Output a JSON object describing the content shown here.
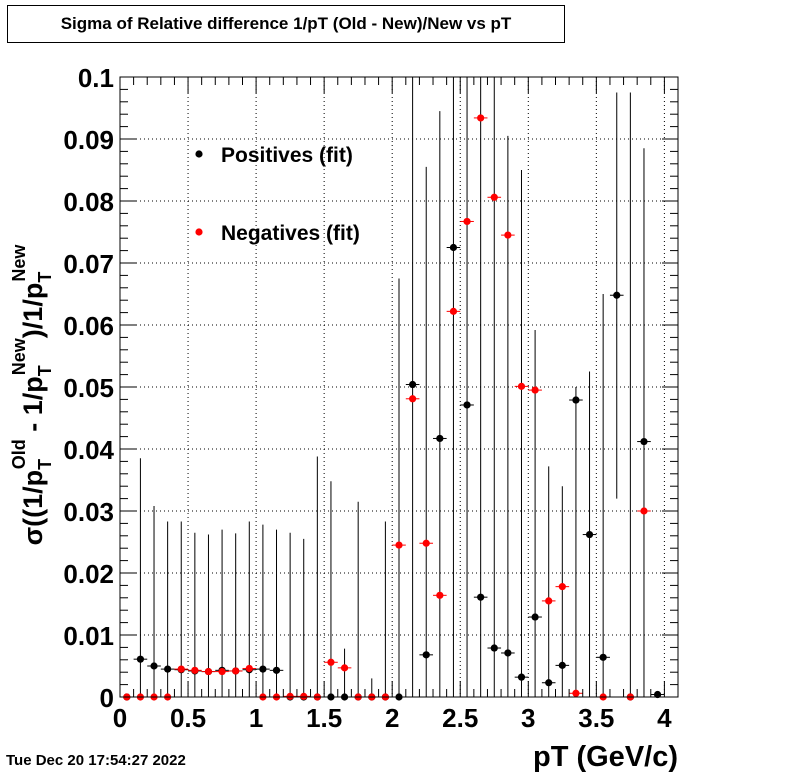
{
  "title": "Sigma of Relative difference 1/pT (Old - New)/New vs pT",
  "timestamp": "Tue Dec 20 17:54:27 2022",
  "colors": {
    "positives": "#000000",
    "negatives": "#ff0000"
  },
  "chart_data": {
    "type": "scatter",
    "title": "Sigma of Relative difference 1/pT (Old - New)/New vs pT",
    "xlabel": "pT (GeV/c)",
    "ylabel": "σ((1/pT^Old - 1/pT^New)/1/pT^New)",
    "ylabel_parts": {
      "sigma": "σ((1/p",
      "sub_t": "T",
      "sup_old": "Old",
      "mid": " - 1/p",
      "sup_new": "New",
      "end": ")/1/p"
    },
    "xlim": [
      0,
      4.1
    ],
    "ylim": [
      0,
      0.1
    ],
    "x_ticks": [
      {
        "value": 0,
        "label": "0"
      },
      {
        "value": 0.5,
        "label": "0.5"
      },
      {
        "value": 1,
        "label": "1"
      },
      {
        "value": 1.5,
        "label": "1.5"
      },
      {
        "value": 2,
        "label": "2"
      },
      {
        "value": 2.5,
        "label": "2.5"
      },
      {
        "value": 3,
        "label": "3"
      },
      {
        "value": 3.5,
        "label": "3.5"
      },
      {
        "value": 4,
        "label": "4"
      }
    ],
    "y_ticks": [
      {
        "value": 0,
        "label": "0"
      },
      {
        "value": 0.01,
        "label": "0.01"
      },
      {
        "value": 0.02,
        "label": "0.02"
      },
      {
        "value": 0.03,
        "label": "0.03"
      },
      {
        "value": 0.04,
        "label": "0.04"
      },
      {
        "value": 0.05,
        "label": "0.05"
      },
      {
        "value": 0.06,
        "label": "0.06"
      },
      {
        "value": 0.07,
        "label": "0.07"
      },
      {
        "value": 0.08,
        "label": "0.08"
      },
      {
        "value": 0.09,
        "label": "0.09"
      },
      {
        "value": 0.1,
        "label": "0.1"
      }
    ],
    "grid": true,
    "legend": "top-left",
    "x_error": 0.05,
    "series": [
      {
        "name": "Positives (fit)",
        "color": "#000000",
        "points": [
          {
            "x": 0.05,
            "y": 0.0,
            "lo": 0.0,
            "hi": 0.0
          },
          {
            "x": 0.15,
            "y": 0.0061,
            "lo": 0.0,
            "hi": 0.0385
          },
          {
            "x": 0.25,
            "y": 0.005,
            "lo": 0.0,
            "hi": 0.0308
          },
          {
            "x": 0.35,
            "y": 0.0045,
            "lo": 0.0,
            "hi": 0.0283
          },
          {
            "x": 0.45,
            "y": 0.0044,
            "lo": 0.0,
            "hi": 0.0283
          },
          {
            "x": 0.55,
            "y": 0.0042,
            "lo": 0.0,
            "hi": 0.0265
          },
          {
            "x": 0.65,
            "y": 0.0041,
            "lo": 0.0,
            "hi": 0.0262
          },
          {
            "x": 0.75,
            "y": 0.0043,
            "lo": 0.0,
            "hi": 0.027
          },
          {
            "x": 0.85,
            "y": 0.0042,
            "lo": 0.0,
            "hi": 0.0264
          },
          {
            "x": 0.95,
            "y": 0.0044,
            "lo": 0.0,
            "hi": 0.0283
          },
          {
            "x": 1.05,
            "y": 0.0045,
            "lo": 0.0,
            "hi": 0.0278
          },
          {
            "x": 1.15,
            "y": 0.0043,
            "lo": 0.0,
            "hi": 0.027
          },
          {
            "x": 1.25,
            "y": 0.0,
            "lo": 0.0,
            "hi": 0.0265
          },
          {
            "x": 1.35,
            "y": 0.0,
            "lo": 0.0,
            "hi": 0.0255
          },
          {
            "x": 1.45,
            "y": 0.0,
            "lo": 0.0,
            "hi": 0.0388
          },
          {
            "x": 1.55,
            "y": 0.0,
            "lo": 0.0,
            "hi": 0.0348
          },
          {
            "x": 1.65,
            "y": 0.0,
            "lo": 0.0,
            "hi": 0.0078
          },
          {
            "x": 1.75,
            "y": 0.0,
            "lo": 0.0,
            "hi": 0.0315
          },
          {
            "x": 1.85,
            "y": 0.0,
            "lo": 0.0,
            "hi": 0.003
          },
          {
            "x": 1.95,
            "y": 0.0,
            "lo": 0.0,
            "hi": 0.0283
          },
          {
            "x": 2.05,
            "y": 0.0,
            "lo": 0.0,
            "hi": 0.0675
          },
          {
            "x": 2.15,
            "y": 0.0504,
            "lo": 0.0,
            "hi": 0.1
          },
          {
            "x": 2.25,
            "y": 0.0068,
            "lo": 0.0,
            "hi": 0.0855
          },
          {
            "x": 2.35,
            "y": 0.0417,
            "lo": 0.0,
            "hi": 0.0945
          },
          {
            "x": 2.45,
            "y": 0.0725,
            "lo": 0.0,
            "hi": 0.1
          },
          {
            "x": 2.55,
            "y": 0.0471,
            "lo": 0.0,
            "hi": 0.1
          },
          {
            "x": 2.65,
            "y": 0.0161,
            "lo": 0.0,
            "hi": 0.1
          },
          {
            "x": 2.75,
            "y": 0.0079,
            "lo": 0.0,
            "hi": 0.1
          },
          {
            "x": 2.85,
            "y": 0.0071,
            "lo": 0.0,
            "hi": 0.0905
          },
          {
            "x": 2.95,
            "y": 0.0032,
            "lo": 0.0,
            "hi": 0.085
          },
          {
            "x": 3.05,
            "y": 0.0129,
            "lo": 0.0,
            "hi": 0.0592
          },
          {
            "x": 3.15,
            "y": 0.0023,
            "lo": 0.0,
            "hi": 0.0372
          },
          {
            "x": 3.25,
            "y": 0.0051,
            "lo": 0.0,
            "hi": 0.034
          },
          {
            "x": 3.35,
            "y": 0.0479,
            "lo": 0.0,
            "hi": 0.05
          },
          {
            "x": 3.45,
            "y": 0.0262,
            "lo": 0.0,
            "hi": 0.0525
          },
          {
            "x": 3.55,
            "y": 0.0064,
            "lo": 0.0,
            "hi": 0.065
          },
          {
            "x": 3.65,
            "y": 0.0648,
            "lo": 0.032,
            "hi": 0.0975
          },
          {
            "x": 3.75,
            "y": 0.0,
            "lo": 0.0,
            "hi": 0.0975
          },
          {
            "x": 3.85,
            "y": 0.0412,
            "lo": 0.0,
            "hi": 0.0885
          },
          {
            "x": 3.95,
            "y": 0.0004,
            "lo": 0.0,
            "hi": 0.0
          }
        ]
      },
      {
        "name": "Negatives (fit)",
        "color": "#ff0000",
        "points": [
          {
            "x": 0.05,
            "y": 0.0
          },
          {
            "x": 0.15,
            "y": 0.0
          },
          {
            "x": 0.25,
            "y": 0.0
          },
          {
            "x": 0.35,
            "y": 0.0
          },
          {
            "x": 0.45,
            "y": 0.0045
          },
          {
            "x": 0.55,
            "y": 0.0043
          },
          {
            "x": 0.65,
            "y": 0.0041
          },
          {
            "x": 0.75,
            "y": 0.0041
          },
          {
            "x": 0.85,
            "y": 0.0042
          },
          {
            "x": 0.95,
            "y": 0.0046
          },
          {
            "x": 1.05,
            "y": 0.0
          },
          {
            "x": 1.15,
            "y": 0.0
          },
          {
            "x": 1.25,
            "y": 0.0001
          },
          {
            "x": 1.35,
            "y": 0.0001
          },
          {
            "x": 1.45,
            "y": 0.0
          },
          {
            "x": 1.55,
            "y": 0.0056
          },
          {
            "x": 1.65,
            "y": 0.0047
          },
          {
            "x": 1.75,
            "y": 0.0
          },
          {
            "x": 1.85,
            "y": 0.0
          },
          {
            "x": 1.95,
            "y": 0.0
          },
          {
            "x": 2.05,
            "y": 0.0245
          },
          {
            "x": 2.15,
            "y": 0.0481
          },
          {
            "x": 2.25,
            "y": 0.0248
          },
          {
            "x": 2.35,
            "y": 0.0164
          },
          {
            "x": 2.45,
            "y": 0.0622
          },
          {
            "x": 2.55,
            "y": 0.0767
          },
          {
            "x": 2.65,
            "y": 0.0934
          },
          {
            "x": 2.75,
            "y": 0.0806
          },
          {
            "x": 2.85,
            "y": 0.0745
          },
          {
            "x": 2.95,
            "y": 0.0501
          },
          {
            "x": 3.05,
            "y": 0.0495
          },
          {
            "x": 3.15,
            "y": 0.0155
          },
          {
            "x": 3.25,
            "y": 0.0178
          },
          {
            "x": 3.35,
            "y": 0.0006
          },
          {
            "x": 3.55,
            "y": 0.0
          },
          {
            "x": 3.75,
            "y": 0.0
          },
          {
            "x": 3.85,
            "y": 0.03
          }
        ]
      }
    ]
  }
}
